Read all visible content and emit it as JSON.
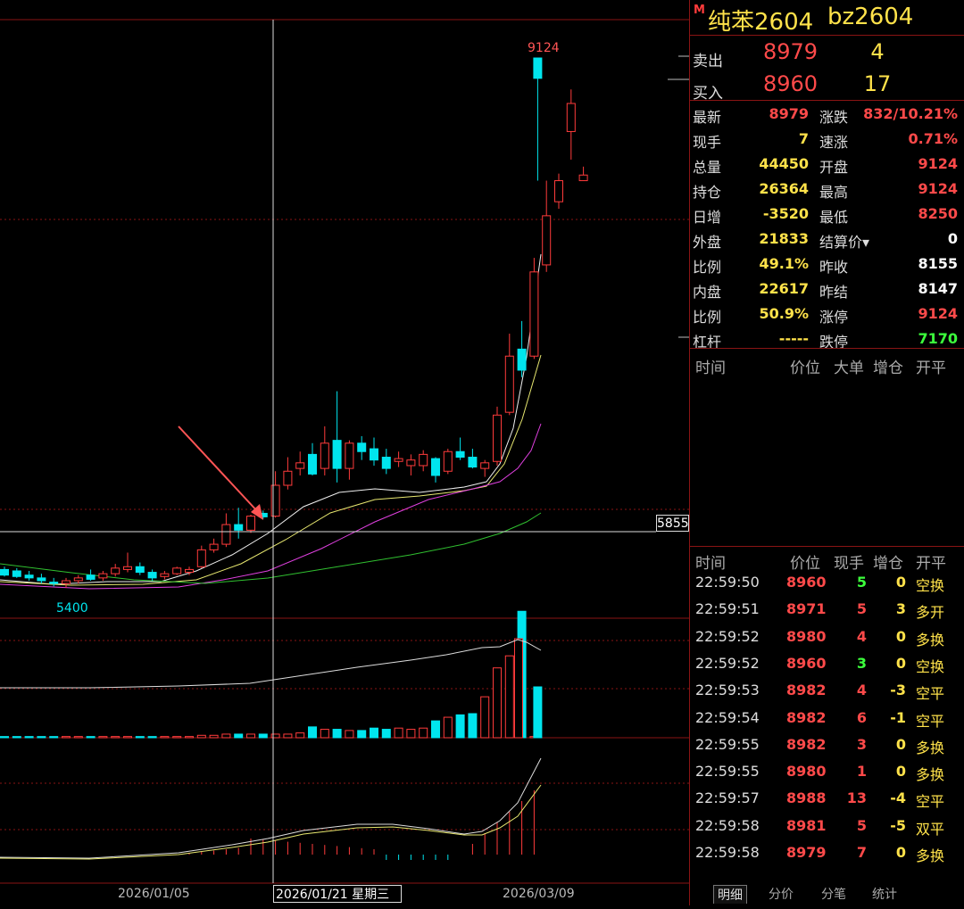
{
  "chart": {
    "high_label": "9124",
    "low_label": "5400",
    "cursor_price": "5855",
    "cursor_date": "2026/01/21 星期三",
    "x_ticks": [
      "2026/01/05",
      "2026/03/09"
    ]
  },
  "contract": {
    "marker": "M",
    "name": "纯苯2604",
    "code": "bz2604"
  },
  "orderbook": {
    "sell": {
      "label": "卖出",
      "price": "8979",
      "qty": "4"
    },
    "buy": {
      "label": "买入",
      "price": "8960",
      "qty": "17"
    }
  },
  "quote": [
    {
      "k1": "最新",
      "v1": "8979",
      "c1": "red",
      "k2": "涨跌",
      "v2": "832/10.21%",
      "c2": "red"
    },
    {
      "k1": "现手",
      "v1": "7",
      "c1": "yel",
      "k2": "速涨",
      "v2": "0.71%",
      "c2": "red"
    },
    {
      "k1": "总量",
      "v1": "44450",
      "c1": "yel",
      "k2": "开盘",
      "v2": "9124",
      "c2": "red"
    },
    {
      "k1": "持仓",
      "v1": "26364",
      "c1": "yel",
      "k2": "最高",
      "v2": "9124",
      "c2": "red"
    },
    {
      "k1": "日增",
      "v1": "-3520",
      "c1": "yel",
      "k2": "最低",
      "v2": "8250",
      "c2": "red"
    },
    {
      "k1": "外盘",
      "v1": "21833",
      "c1": "yel",
      "k2": "结算价▾",
      "v2": "0",
      "c2": "wht"
    },
    {
      "k1": "比例",
      "v1": "49.1%",
      "c1": "yel",
      "k2": "昨收",
      "v2": "8155",
      "c2": "wht"
    },
    {
      "k1": "内盘",
      "v1": "22617",
      "c1": "yel",
      "k2": "昨结",
      "v2": "8147",
      "c2": "wht"
    },
    {
      "k1": "比例",
      "v1": "50.9%",
      "c1": "yel",
      "k2": "涨停",
      "v2": "9124",
      "c2": "red"
    },
    {
      "k1": "杠杆",
      "v1": "-----",
      "c1": "yel",
      "k2": "跌停",
      "v2": "7170",
      "c2": "grn"
    }
  ],
  "bigorders": {
    "headers": [
      "时间",
      "价位",
      "大单",
      "增仓",
      "开平"
    ]
  },
  "ticks": {
    "headers": [
      "时间",
      "价位",
      "现手",
      "增仓",
      "开平"
    ],
    "rows": [
      {
        "time": "22:59:50",
        "price": "8960",
        "vol": "5",
        "vc": "grn",
        "oi": "0",
        "type": "空换"
      },
      {
        "time": "22:59:51",
        "price": "8971",
        "vol": "5",
        "vc": "red",
        "oi": "3",
        "type": "多开"
      },
      {
        "time": "22:59:52",
        "price": "8980",
        "vol": "4",
        "vc": "red",
        "oi": "0",
        "type": "多换"
      },
      {
        "time": "22:59:52",
        "price": "8960",
        "vol": "3",
        "vc": "grn",
        "oi": "0",
        "type": "空换"
      },
      {
        "time": "22:59:53",
        "price": "8982",
        "vol": "4",
        "vc": "red",
        "oi": "-3",
        "type": "空平"
      },
      {
        "time": "22:59:54",
        "price": "8982",
        "vol": "6",
        "vc": "red",
        "oi": "-1",
        "type": "空平"
      },
      {
        "time": "22:59:55",
        "price": "8982",
        "vol": "3",
        "vc": "red",
        "oi": "0",
        "type": "多换"
      },
      {
        "time": "22:59:55",
        "price": "8980",
        "vol": "1",
        "vc": "red",
        "oi": "0",
        "type": "多换"
      },
      {
        "time": "22:59:57",
        "price": "8988",
        "vol": "13",
        "vc": "red",
        "oi": "-4",
        "type": "空平"
      },
      {
        "time": "22:59:58",
        "price": "8981",
        "vol": "5",
        "vc": "red",
        "oi": "-5",
        "type": "双平"
      },
      {
        "time": "22:59:58",
        "price": "8979",
        "vol": "7",
        "vc": "red",
        "oi": "0",
        "type": "多换"
      }
    ]
  },
  "tabs": [
    "明细",
    "分价",
    "分笔",
    "统计"
  ],
  "colors": {
    "up": "#ff3b3b",
    "down": "#00e5ee",
    "border": "#8a1414",
    "ma1": "#f0f0f0",
    "ma2": "#e8e870",
    "ma3": "#e040e0",
    "ma4": "#30c030"
  }
}
